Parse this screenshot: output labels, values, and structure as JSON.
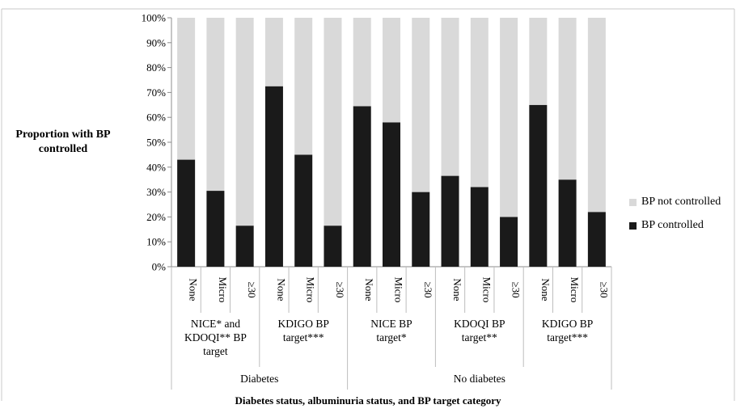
{
  "chart_data": {
    "type": "bar",
    "stacked": true,
    "ylabel": "Proportion with BP controlled",
    "xlabel": "Diabetes status, albuminuria  status, and BP target category",
    "ylim": [
      0,
      100
    ],
    "yticks": [
      "0%",
      "10%",
      "20%",
      "30%",
      "40%",
      "50%",
      "60%",
      "70%",
      "80%",
      "90%",
      "100%"
    ],
    "categories": [
      "None",
      "Micro",
      "≥30",
      "None",
      "Micro",
      "≥30",
      "None",
      "Micro",
      "≥30",
      "None",
      "Micro",
      "≥30",
      "None",
      "Micro",
      "≥30"
    ],
    "target_groups": [
      {
        "label": "NICE* and KDOQI** BP target",
        "lines": [
          "NICE* and",
          "KDOQI** BP",
          "target"
        ],
        "span": 3
      },
      {
        "label": "KDIGO BP target***",
        "lines": [
          "KDIGO BP",
          "target***"
        ],
        "span": 3
      },
      {
        "label": "NICE BP target*",
        "lines": [
          "NICE BP",
          "target*"
        ],
        "span": 3
      },
      {
        "label": "KDOQI BP target**",
        "lines": [
          "KDOQI BP",
          "target**"
        ],
        "span": 3
      },
      {
        "label": "KDIGO BP target***",
        "lines": [
          "KDIGO BP",
          "target***"
        ],
        "span": 3
      }
    ],
    "diabetes_groups": [
      {
        "label": "Diabetes",
        "span": 6
      },
      {
        "label": "No diabetes",
        "span": 9
      }
    ],
    "series": [
      {
        "name": "BP controlled",
        "color": "#1a1a1a",
        "values": [
          43,
          30.5,
          16.5,
          72.5,
          45,
          16.5,
          64.5,
          58,
          30,
          36.5,
          32,
          20,
          65,
          35,
          22
        ]
      },
      {
        "name": "BP not controlled",
        "color": "#d9d9d9",
        "values": [
          57,
          69.5,
          83.5,
          27.5,
          55,
          83.5,
          35.5,
          42,
          70,
          63.5,
          68,
          80,
          35,
          65,
          78
        ]
      }
    ],
    "legend_position": "right",
    "legend": [
      "BP not controlled",
      "BP controlled"
    ],
    "grid": false
  }
}
